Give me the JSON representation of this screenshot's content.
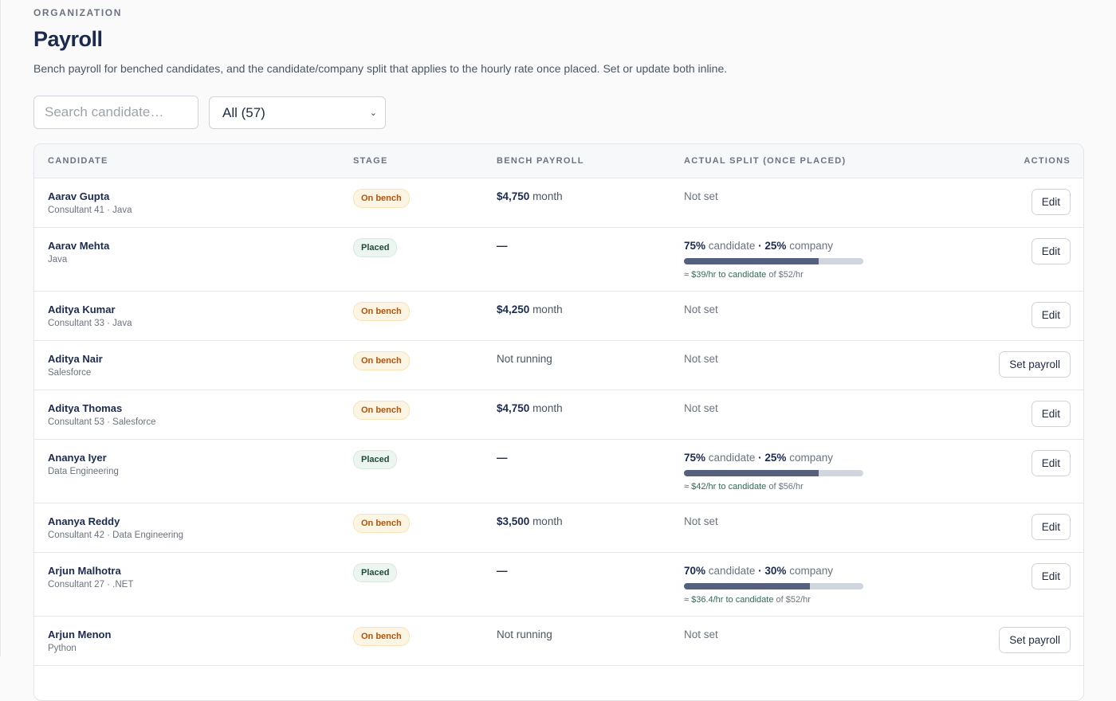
{
  "header": {
    "eyebrow": "ORGANIZATION",
    "title": "Payroll",
    "description": "Bench payroll for benched candidates, and the candidate/company split that applies to the hourly rate once placed. Set or update both inline."
  },
  "filters": {
    "search_placeholder": "Search candidate…",
    "select_value": "All (57)"
  },
  "table": {
    "columns": [
      "CANDIDATE",
      "STAGE",
      "BENCH PAYROLL",
      "ACTUAL SPLIT (ONCE PLACED)",
      "ACTIONS"
    ],
    "rows": [
      {
        "name": "Aarav Gupta",
        "sub": "Consultant 41 · Java",
        "stage": "On bench",
        "payroll_amount": "$4,750",
        "payroll_unit": "month",
        "split": "Not set",
        "action": "Edit"
      },
      {
        "name": "Aarav Mehta",
        "sub": "Java",
        "stage": "Placed",
        "payroll_amount": "—",
        "payroll_unit": "",
        "split_candidate": "75%",
        "split_candidate_label": "candidate",
        "split_sep": "·",
        "split_company": "25%",
        "split_company_label": "company",
        "split_fraction": 0.75,
        "hint_main": "≈ $39/hr to candidate",
        "hint_of": "of $52/hr",
        "action": "Edit"
      },
      {
        "name": "Aditya Kumar",
        "sub": "Consultant 33 · Java",
        "stage": "On bench",
        "payroll_amount": "$4,250",
        "payroll_unit": "month",
        "split": "Not set",
        "action": "Edit"
      },
      {
        "name": "Aditya Nair",
        "sub": "Salesforce",
        "stage": "On bench",
        "payroll_text": "Not running",
        "split": "Not set",
        "action": "Set payroll"
      },
      {
        "name": "Aditya Thomas",
        "sub": "Consultant 53 · Salesforce",
        "stage": "On bench",
        "payroll_amount": "$4,750",
        "payroll_unit": "month",
        "split": "Not set",
        "action": "Edit"
      },
      {
        "name": "Ananya Iyer",
        "sub": "Data Engineering",
        "stage": "Placed",
        "payroll_amount": "—",
        "payroll_unit": "",
        "split_candidate": "75%",
        "split_candidate_label": "candidate",
        "split_sep": "·",
        "split_company": "25%",
        "split_company_label": "company",
        "split_fraction": 0.75,
        "hint_main": "≈ $42/hr to candidate",
        "hint_of": "of $56/hr",
        "action": "Edit"
      },
      {
        "name": "Ananya Reddy",
        "sub": "Consultant 42 · Data Engineering",
        "stage": "On bench",
        "payroll_amount": "$3,500",
        "payroll_unit": "month",
        "split": "Not set",
        "action": "Edit"
      },
      {
        "name": "Arjun Malhotra",
        "sub": "Consultant 27 · .NET",
        "stage": "Placed",
        "payroll_amount": "—",
        "payroll_unit": "",
        "split_candidate": "70%",
        "split_candidate_label": "candidate",
        "split_sep": "·",
        "split_company": "30%",
        "split_company_label": "company",
        "split_fraction": 0.7,
        "hint_main": "≈ $36.4/hr to candidate",
        "hint_of": "of $52/hr",
        "action": "Edit"
      },
      {
        "name": "Arjun Menon",
        "sub": "Python",
        "stage": "On bench",
        "payroll_text": "Not running",
        "split": "Not set",
        "action": "Set payroll"
      }
    ]
  }
}
